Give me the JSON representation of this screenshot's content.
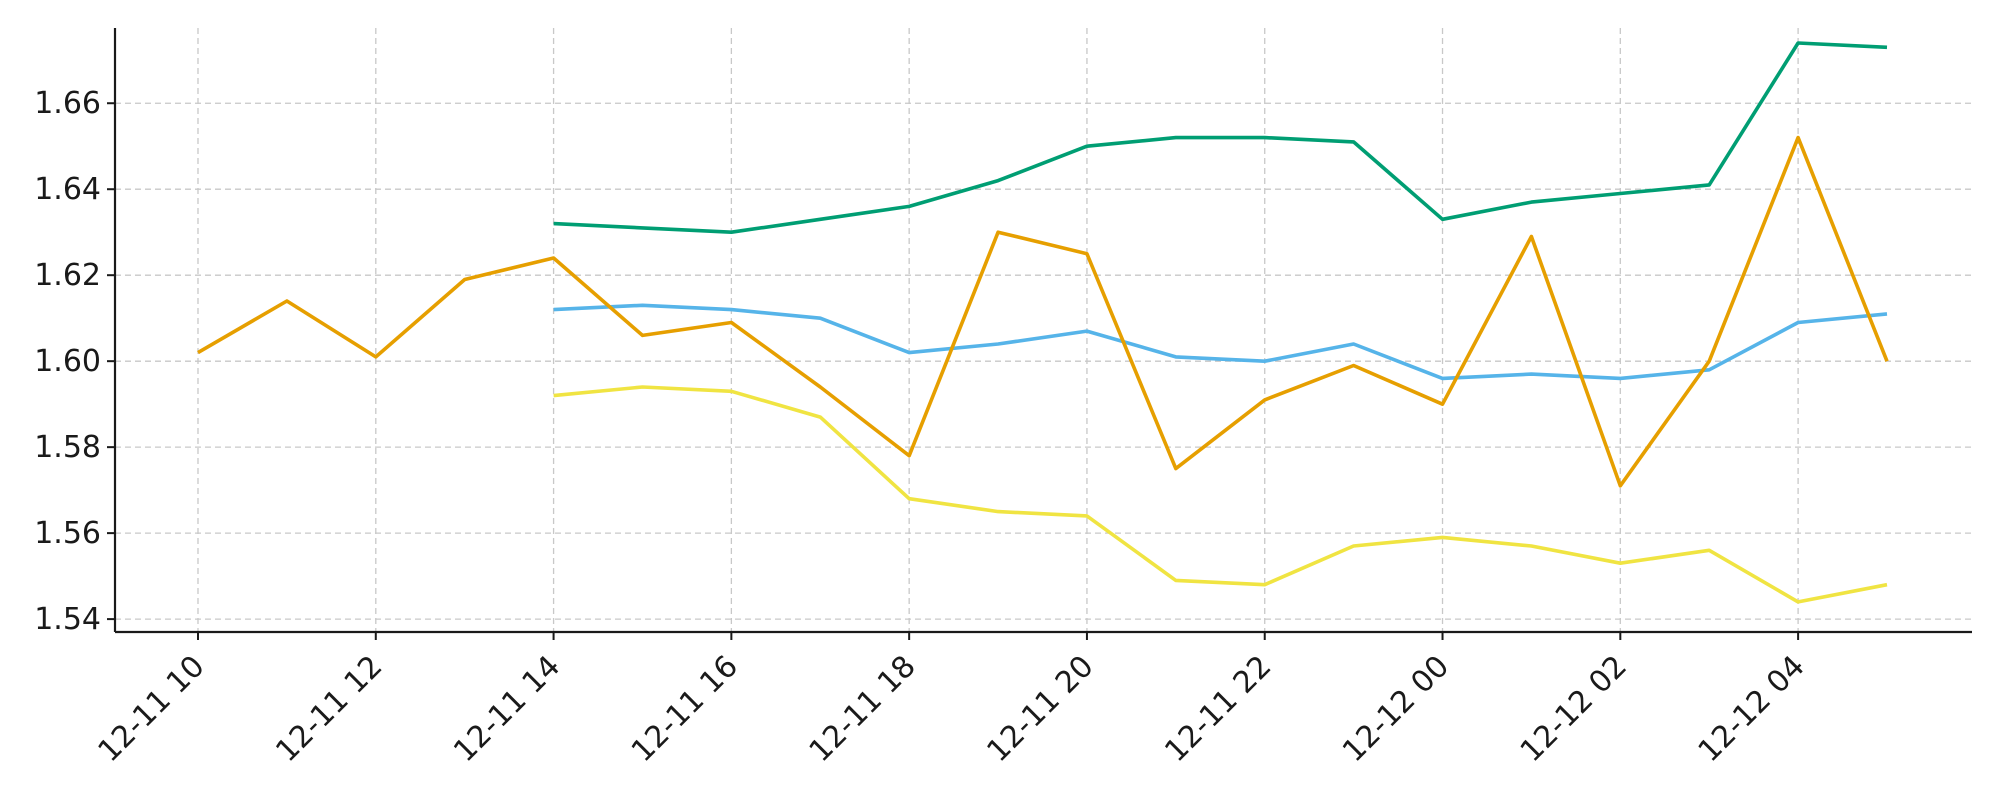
{
  "chart_data": {
    "type": "line",
    "title": "",
    "xlabel": "",
    "ylabel": "",
    "x": [
      "12-11 10",
      "12-11 11",
      "12-11 12",
      "12-11 13",
      "12-11 14",
      "12-11 15",
      "12-11 16",
      "12-11 17",
      "12-11 18",
      "12-11 19",
      "12-11 20",
      "12-11 21",
      "12-11 22",
      "12-11 23",
      "12-12 00",
      "12-12 01",
      "12-12 02",
      "12-12 03",
      "12-12 04",
      "12-12 05"
    ],
    "x_ticks": [
      "12-11 10",
      "12-11 12",
      "12-11 14",
      "12-11 16",
      "12-11 18",
      "12-11 20",
      "12-11 22",
      "12-12 00",
      "12-12 02",
      "12-12 04"
    ],
    "y_ticks": [
      1.54,
      1.56,
      1.58,
      1.6,
      1.62,
      1.64,
      1.66
    ],
    "y_tick_labels": [
      "1.54",
      "1.56",
      "1.58",
      "1.60",
      "1.62",
      "1.64",
      "1.66"
    ],
    "ylim": [
      1.537,
      1.6775
    ],
    "grid": true,
    "legend": "none",
    "series": [
      {
        "color": "#E69F00",
        "values": [
          1.602,
          1.614,
          1.601,
          1.619,
          1.624,
          1.606,
          1.609,
          1.594,
          1.578,
          1.63,
          1.625,
          1.575,
          1.591,
          1.599,
          1.59,
          1.629,
          1.571,
          1.6,
          1.652,
          1.6
        ]
      },
      {
        "color": "#009E73",
        "values": [
          null,
          null,
          null,
          null,
          1.632,
          1.631,
          1.63,
          1.633,
          1.636,
          1.642,
          1.65,
          1.652,
          1.652,
          1.651,
          1.633,
          1.637,
          1.639,
          1.641,
          1.674,
          1.673
        ]
      },
      {
        "color": "#56B4E9",
        "values": [
          null,
          null,
          null,
          null,
          1.612,
          1.613,
          1.612,
          1.61,
          1.602,
          1.604,
          1.607,
          1.601,
          1.6,
          1.604,
          1.596,
          1.597,
          1.596,
          1.598,
          1.609,
          1.611
        ]
      },
      {
        "color": "#F0E442",
        "values": [
          null,
          null,
          null,
          null,
          1.592,
          1.594,
          1.593,
          1.587,
          1.568,
          1.565,
          1.564,
          1.549,
          1.548,
          1.557,
          1.559,
          1.557,
          1.553,
          1.556,
          1.544,
          1.548
        ]
      }
    ]
  }
}
